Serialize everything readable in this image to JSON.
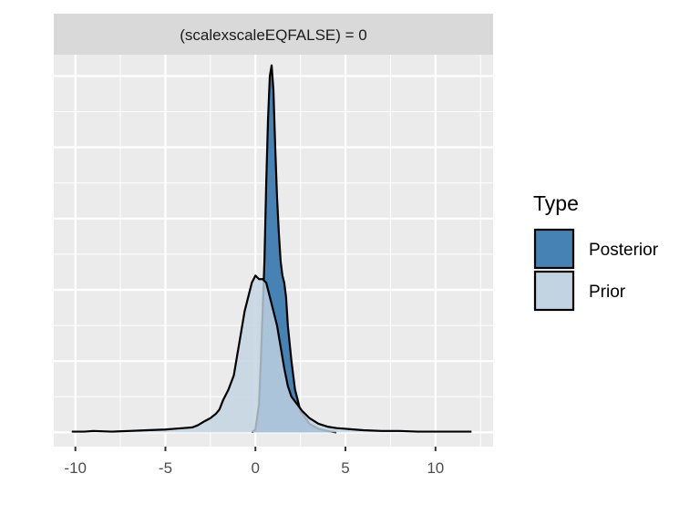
{
  "chart_data": {
    "type": "area",
    "facet_label": "(scalexscaleEQFALSE) = 0",
    "xlim": [
      -11.2,
      13.2
    ],
    "ylim": [
      -0.02,
      0.53
    ],
    "x_ticks": [
      -10,
      -5,
      0,
      5,
      10
    ],
    "x_tick_labels": [
      "-10",
      "-5",
      "0",
      "5",
      "10"
    ],
    "xlabel": "",
    "ylabel": "",
    "legend": {
      "title": "Type",
      "position": "right",
      "entries": [
        {
          "label": "Posterior",
          "color": "#4682b4"
        },
        {
          "label": "Prior",
          "color": "#c2d3e1"
        }
      ]
    },
    "series": [
      {
        "name": "Posterior",
        "color": "#4682b4",
        "x": [
          -0.2,
          0,
          0.2,
          0.3,
          0.4,
          0.5,
          0.6,
          0.7,
          0.8,
          0.9,
          1.0,
          1.1,
          1.2,
          1.3,
          1.4,
          1.5,
          1.6,
          1.7,
          1.8,
          2.0,
          2.2,
          2.5,
          3.0,
          3.5,
          4.0,
          4.5
        ],
        "y": [
          0,
          0.004,
          0.04,
          0.1,
          0.17,
          0.24,
          0.35,
          0.44,
          0.5,
          0.515,
          0.48,
          0.4,
          0.33,
          0.28,
          0.24,
          0.22,
          0.21,
          0.19,
          0.15,
          0.1,
          0.06,
          0.03,
          0.012,
          0.005,
          0.002,
          0
        ]
      },
      {
        "name": "Prior",
        "color": "#c2d3e1",
        "x": [
          -10.2,
          -9.5,
          -9.0,
          -8.0,
          -7.0,
          -6.0,
          -5.0,
          -4.5,
          -4.0,
          -3.5,
          -3.2,
          -3.0,
          -2.8,
          -2.5,
          -2.2,
          -2.0,
          -1.8,
          -1.5,
          -1.2,
          -1.0,
          -0.8,
          -0.6,
          -0.4,
          -0.2,
          0,
          0.2,
          0.4,
          0.6,
          0.8,
          1.0,
          1.2,
          1.4,
          1.6,
          1.8,
          2.0,
          2.3,
          2.6,
          3.0,
          3.5,
          4.0,
          4.5,
          5.0,
          5.5,
          6.0,
          7.0,
          8.0,
          9.0,
          10.0,
          11.0,
          12.0
        ],
        "y": [
          0.001,
          0.001,
          0.002,
          0.001,
          0.002,
          0.003,
          0.004,
          0.005,
          0.006,
          0.007,
          0.01,
          0.013,
          0.016,
          0.02,
          0.026,
          0.032,
          0.045,
          0.06,
          0.08,
          0.11,
          0.14,
          0.17,
          0.19,
          0.21,
          0.22,
          0.215,
          0.215,
          0.21,
          0.19,
          0.17,
          0.15,
          0.12,
          0.09,
          0.065,
          0.05,
          0.04,
          0.03,
          0.02,
          0.012,
          0.008,
          0.006,
          0.005,
          0.004,
          0.003,
          0.002,
          0.002,
          0.001,
          0.001,
          0.001,
          0.001
        ]
      }
    ]
  }
}
